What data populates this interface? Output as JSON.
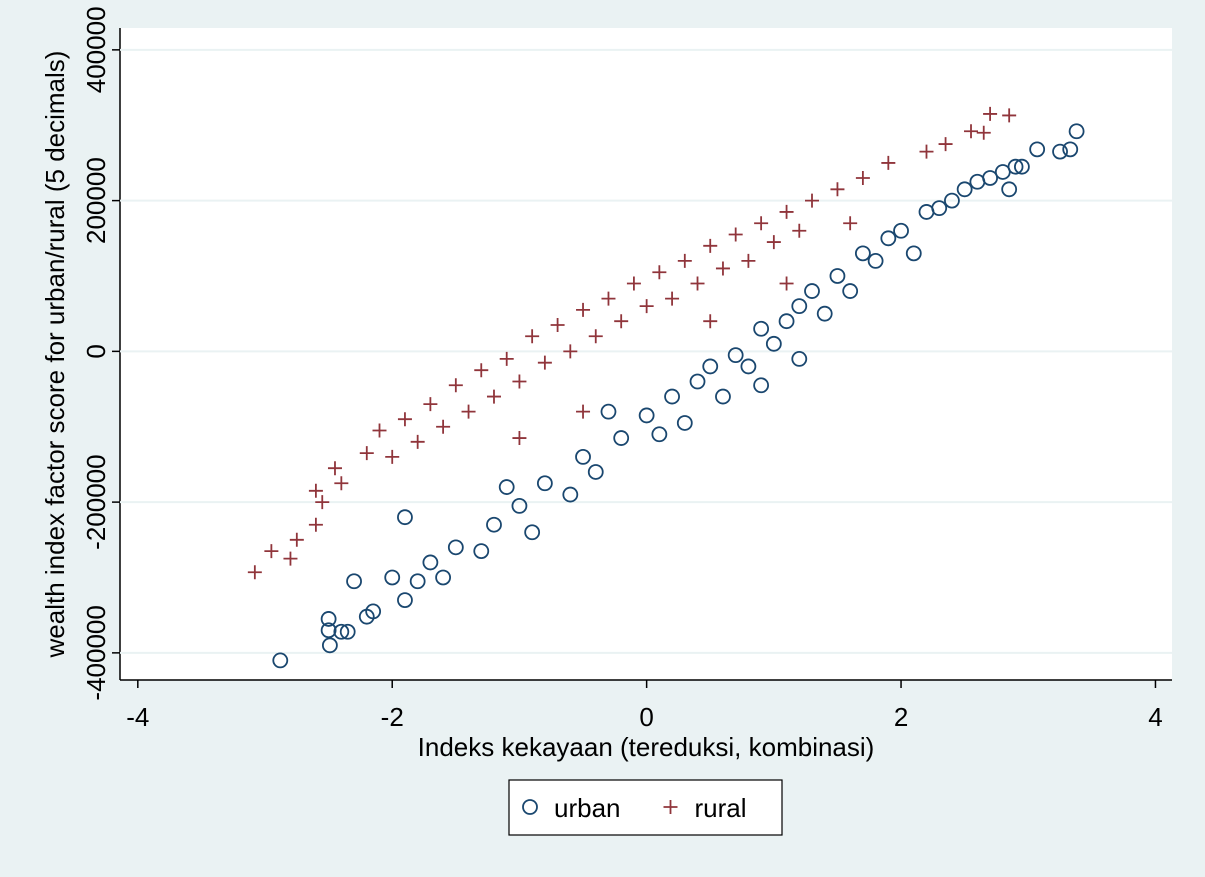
{
  "chart_data": {
    "type": "scatter",
    "x_label": "Indeks kekayaan (tereduksi, kombinasi)",
    "y_label": "wealth index factor score for urban/rural (5 decimals)",
    "xlim": [
      -4.14,
      4.13
    ],
    "ylim": [
      -436000,
      429000
    ],
    "xticks": [
      -4,
      -2,
      0,
      2,
      4
    ],
    "yticks": [
      -400000,
      -200000,
      0,
      200000,
      400000
    ],
    "grid": true,
    "legend": "bottom",
    "series": [
      {
        "name": "urban",
        "color": "#1a476f",
        "marker": "circle",
        "x": [
          -2.88,
          -2.49,
          -2.5,
          -2.5,
          -2.4,
          -2.35,
          -2.2,
          -2.15,
          -2.3,
          -2.0,
          -1.9,
          -1.8,
          -1.7,
          -1.6,
          -1.5,
          -1.3,
          -1.2,
          -1.0,
          -0.9,
          -0.8,
          -0.6,
          -0.5,
          -0.4,
          -0.2,
          0,
          0.1,
          0.2,
          0.3,
          0.4,
          0.5,
          0.6,
          0.7,
          0.8,
          0.9,
          1.0,
          1.1,
          1.2,
          1.3,
          1.4,
          1.5,
          1.6,
          1.7,
          1.8,
          1.9,
          2.0,
          2.1,
          2.2,
          2.3,
          2.4,
          2.5,
          2.6,
          2.7,
          2.8,
          2.9,
          3.07,
          3.25,
          3.33,
          3.38,
          2.95,
          2.85,
          -1.1,
          -0.3,
          0.9,
          1.2,
          -1.9
        ],
        "values": [
          -410000,
          -390000,
          -355000,
          -370000,
          -372000,
          -372000,
          -352000,
          -345000,
          -305000,
          -300000,
          -330000,
          -305000,
          -280000,
          -300000,
          -260000,
          -265000,
          -230000,
          -205000,
          -240000,
          -175000,
          -190000,
          -140000,
          -160000,
          -115000,
          -85000,
          -110000,
          -60000,
          -95000,
          -40000,
          -20000,
          -60000,
          -5000,
          -20000,
          30000,
          10000,
          40000,
          60000,
          80000,
          50000,
          100000,
          80000,
          130000,
          120000,
          150000,
          160000,
          130000,
          185000,
          190000,
          200000,
          215000,
          225000,
          230000,
          238000,
          245000,
          268000,
          265000,
          268000,
          292000,
          245000,
          215000,
          -180000,
          -80000,
          -45000,
          -10000,
          -220000
        ]
      },
      {
        "name": "rural",
        "color": "#90353b",
        "marker": "plus",
        "x": [
          -3.08,
          -2.95,
          -2.8,
          -2.75,
          -2.6,
          -2.55,
          -2.4,
          -2.45,
          -2.2,
          -2.1,
          -2.0,
          -1.9,
          -1.8,
          -1.7,
          -1.6,
          -1.5,
          -1.4,
          -1.3,
          -1.2,
          -1.1,
          -1.0,
          -0.9,
          -0.8,
          -0.7,
          -0.6,
          -0.5,
          -0.4,
          -0.3,
          -0.2,
          -0.1,
          0,
          0.1,
          0.2,
          0.3,
          0.4,
          0.5,
          0.6,
          0.7,
          0.8,
          0.9,
          1.0,
          1.1,
          1.2,
          1.3,
          1.5,
          1.7,
          1.9,
          2.2,
          2.35,
          2.55,
          2.65,
          2.85,
          2.7,
          1.6,
          1.1,
          0.5,
          -0.5,
          -2.6,
          -1.0
        ],
        "values": [
          -293000,
          -265000,
          -275000,
          -250000,
          -230000,
          -200000,
          -175000,
          -155000,
          -135000,
          -105000,
          -140000,
          -90000,
          -120000,
          -70000,
          -100000,
          -45000,
          -80000,
          -25000,
          -60000,
          -10000,
          -40000,
          20000,
          -15000,
          35000,
          0,
          55000,
          20000,
          70000,
          40000,
          90000,
          60000,
          105000,
          70000,
          120000,
          90000,
          140000,
          110000,
          155000,
          120000,
          170000,
          145000,
          185000,
          160000,
          200000,
          215000,
          230000,
          250000,
          265000,
          275000,
          292000,
          290000,
          313000,
          315000,
          170000,
          90000,
          40000,
          -80000,
          -185000,
          -115000
        ]
      }
    ]
  }
}
